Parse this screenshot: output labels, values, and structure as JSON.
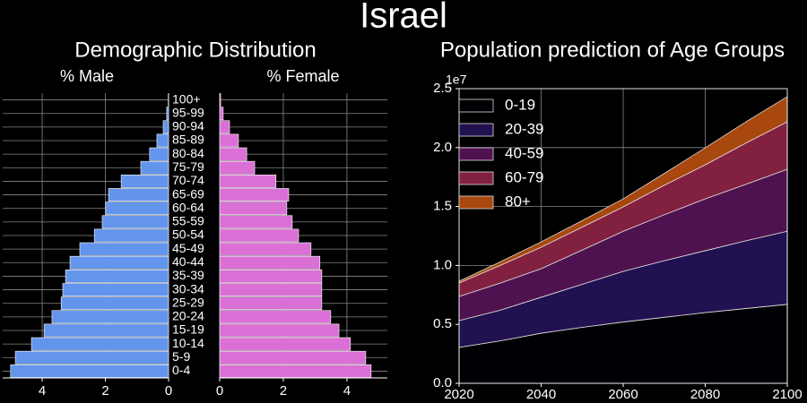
{
  "title": "Israel",
  "chart_data": [
    {
      "type": "pyramid",
      "title": "Demographic Distribution",
      "categories": [
        "0-4",
        "5-9",
        "10-14",
        "15-19",
        "20-24",
        "25-29",
        "30-34",
        "35-39",
        "40-44",
        "45-49",
        "50-54",
        "55-59",
        "60-64",
        "65-69",
        "70-74",
        "75-79",
        "80-84",
        "85-89",
        "90-94",
        "95-99",
        "100+"
      ],
      "grid": true,
      "series": [
        {
          "name": "% Male",
          "color": "#6495ed",
          "xlim": [
            5.25,
            0
          ],
          "xticks": [
            4,
            2,
            0
          ],
          "values": [
            5.0,
            4.85,
            4.34,
            3.94,
            3.69,
            3.4,
            3.35,
            3.26,
            3.12,
            2.81,
            2.35,
            2.1,
            1.99,
            1.9,
            1.5,
            0.88,
            0.6,
            0.37,
            0.17,
            0.06,
            0.01
          ]
        },
        {
          "name": "% Female",
          "color": "#da70d6",
          "xlim": [
            0,
            5.27
          ],
          "xticks": [
            0,
            2,
            4
          ],
          "values": [
            4.76,
            4.59,
            4.11,
            3.75,
            3.49,
            3.21,
            3.21,
            3.21,
            3.15,
            2.87,
            2.48,
            2.28,
            2.11,
            2.17,
            1.77,
            1.1,
            0.85,
            0.59,
            0.31,
            0.11,
            0.03
          ]
        }
      ]
    },
    {
      "type": "stacked_area",
      "title": "Population prediction of Age Groups",
      "x": [
        2020,
        2030,
        2040,
        2050,
        2060,
        2070,
        2080,
        2090,
        2100
      ],
      "xlim": [
        2020,
        2100
      ],
      "xticks": [
        2020,
        2040,
        2060,
        2080,
        2100
      ],
      "ylim": [
        0,
        25000000
      ],
      "yticks": [
        {
          "value": 0,
          "label": "0.0"
        },
        {
          "value": 5000000,
          "label": "0.5"
        },
        {
          "value": 10000000,
          "label": "1.0"
        },
        {
          "value": 15000000,
          "label": "1.5"
        },
        {
          "value": 20000000,
          "label": "2.0"
        },
        {
          "value": 25000000,
          "label": "2.5"
        }
      ],
      "y_offset_label": "1e7",
      "grid": true,
      "legend": "upper left",
      "series": [
        {
          "name": "0-19",
          "color": "#000004",
          "values": [
            3050000,
            3600000,
            4250000,
            4750000,
            5200000,
            5600000,
            6000000,
            6350000,
            6700000
          ]
        },
        {
          "name": "20-39",
          "color": "#221150",
          "values": [
            2270000,
            2600000,
            3050000,
            3650000,
            4300000,
            4800000,
            5250000,
            5750000,
            6200000
          ]
        },
        {
          "name": "40-59",
          "color": "#4f1250",
          "values": [
            2050000,
            2300000,
            2430000,
            2900000,
            3400000,
            3900000,
            4400000,
            4800000,
            5260000
          ]
        },
        {
          "name": "60-79",
          "color": "#822040",
          "values": [
            1140000,
            1500000,
            1820000,
            1950000,
            2070000,
            2500000,
            2890000,
            3500000,
            4030000
          ]
        },
        {
          "name": "80+",
          "color": "#a8470e",
          "values": [
            150000,
            300000,
            450000,
            550000,
            680000,
            1000000,
            1440000,
            1800000,
            2130000
          ]
        }
      ]
    }
  ]
}
